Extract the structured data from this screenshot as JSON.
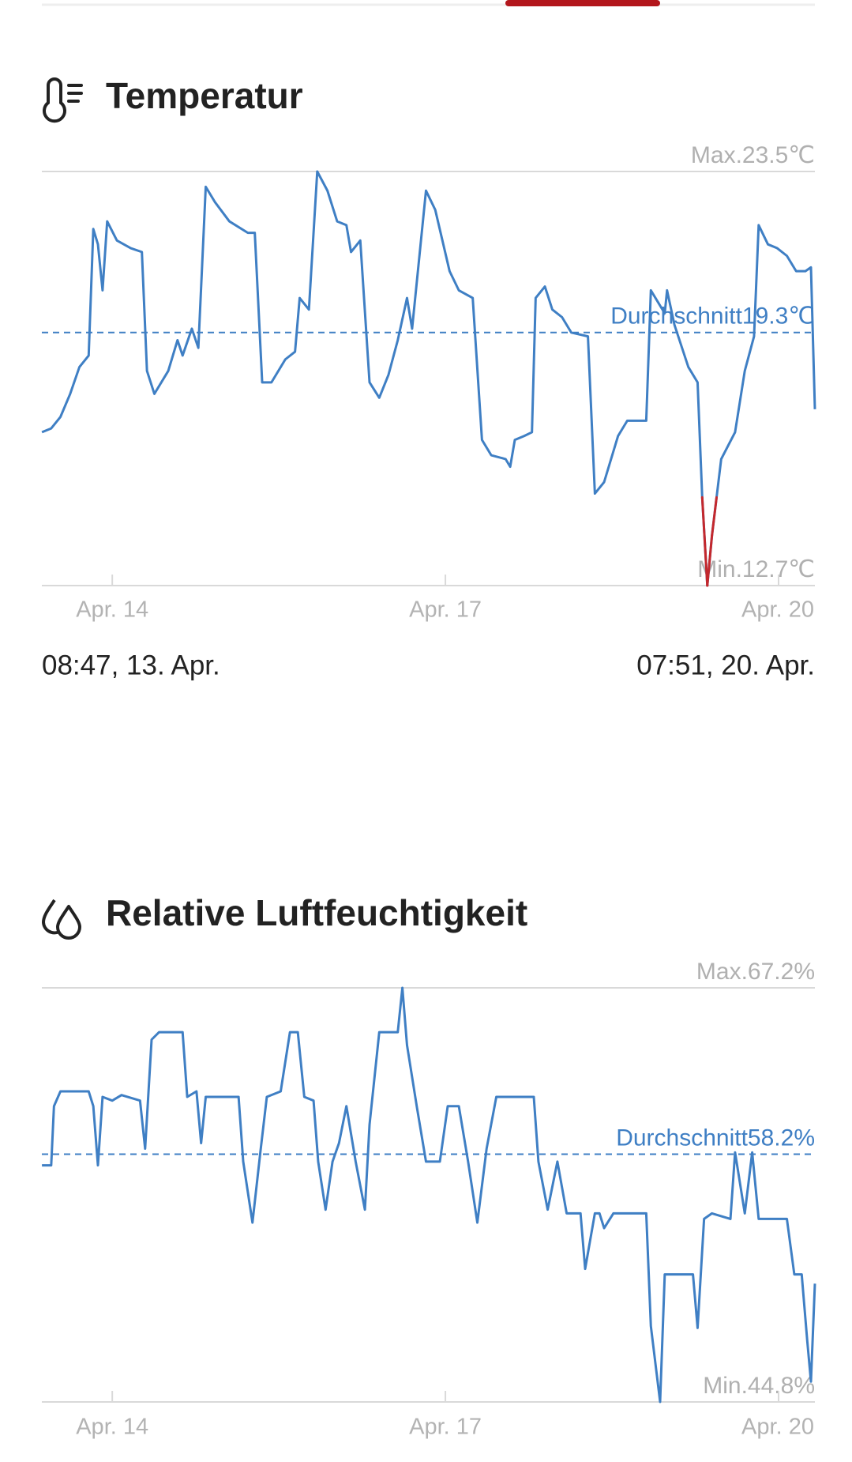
{
  "chart_data": [
    {
      "type": "line",
      "title": "Temperatur",
      "color": "#3f7fc4",
      "highlight_color": "#c4282d",
      "highlight_below": 15.0,
      "xlim": [
        8.78,
        175.85
      ],
      "ylim": [
        12.7,
        23.5
      ],
      "xticks": [
        {
          "value": 24,
          "label": "Apr. 14"
        },
        {
          "value": 96,
          "label": "Apr. 17"
        },
        {
          "value": 168,
          "label": "Apr. 20"
        }
      ],
      "reference_lines": [
        {
          "value": 23.5,
          "label": "Max.23.5℃",
          "style": "solid"
        },
        {
          "value": 19.3,
          "label": "Durchschnitt19.3℃",
          "style": "dashed"
        },
        {
          "value": 12.7,
          "label": "Min.12.7℃",
          "style": "solid"
        }
      ],
      "range_labels": [
        "08:47, 13. Apr.",
        "07:51, 20. Apr."
      ],
      "x": [
        8.8,
        10.8,
        12.8,
        14.9,
        16.9,
        18.9,
        19.9,
        20.9,
        21.9,
        22.9,
        25.0,
        28.0,
        30.4,
        31.5,
        33.1,
        36.1,
        38.1,
        39.2,
        41.2,
        42.6,
        44.2,
        46.2,
        49.3,
        53.3,
        54.8,
        56.4,
        58.4,
        61.4,
        63.5,
        64.5,
        66.5,
        68.3,
        70.5,
        72.6,
        74.6,
        75.6,
        77.6,
        79.6,
        81.7,
        83.7,
        85.7,
        87.7,
        88.8,
        91.8,
        93.8,
        96.9,
        98.9,
        101.9,
        103.9,
        105.9,
        109.0,
        110.0,
        111.0,
        113.0,
        114.7,
        115.5,
        117.5,
        119.1,
        121.2,
        123.2,
        126.8,
        128.3,
        130.3,
        133.3,
        135.3,
        139.4,
        140.4,
        143.4,
        143.9,
        145.5,
        148.5,
        150.5,
        151.5,
        152.6,
        153.6,
        154.6,
        155.6,
        158.6,
        160.7,
        162.7,
        163.7,
        165.7,
        167.7,
        169.8,
        171.8,
        173.8,
        175.0,
        175.85
      ],
      "values": [
        16.7,
        16.8,
        17.1,
        17.7,
        18.4,
        18.7,
        22.0,
        21.6,
        20.4,
        22.2,
        21.7,
        21.5,
        21.4,
        18.3,
        17.7,
        18.3,
        19.1,
        18.7,
        19.4,
        18.9,
        23.1,
        22.7,
        22.2,
        21.9,
        21.9,
        18.0,
        18.0,
        18.6,
        18.8,
        20.2,
        19.9,
        23.5,
        23.0,
        22.2,
        22.1,
        21.4,
        21.7,
        18.0,
        17.6,
        18.2,
        19.1,
        20.2,
        19.4,
        23.0,
        22.5,
        20.9,
        20.4,
        20.2,
        16.5,
        16.1,
        16.0,
        15.8,
        16.5,
        16.6,
        16.7,
        20.2,
        20.5,
        19.9,
        19.7,
        19.3,
        19.2,
        15.1,
        15.4,
        16.6,
        17.0,
        17.0,
        20.4,
        19.8,
        20.4,
        19.5,
        18.4,
        18.0,
        15.0,
        12.7,
        14.0,
        15.0,
        16.0,
        16.7,
        18.3,
        19.2,
        22.1,
        21.6,
        21.5,
        21.3,
        20.9,
        20.9,
        21.0,
        17.3
      ]
    },
    {
      "type": "line",
      "title": "Relative Luftfeuchtigkeit",
      "color": "#3f7fc4",
      "xlim": [
        8.78,
        175.85
      ],
      "ylim": [
        44.8,
        67.2
      ],
      "xticks": [
        {
          "value": 24,
          "label": "Apr. 14"
        },
        {
          "value": 96,
          "label": "Apr. 17"
        },
        {
          "value": 168,
          "label": "Apr. 20"
        }
      ],
      "reference_lines": [
        {
          "value": 67.2,
          "label": "Max.67.2%",
          "style": "solid"
        },
        {
          "value": 58.2,
          "label": "Durchschnitt58.2%",
          "style": "dashed"
        },
        {
          "value": 44.8,
          "label": "Min.44.8%",
          "style": "solid"
        }
      ],
      "x": [
        8.8,
        10.8,
        11.4,
        12.8,
        18.9,
        19.9,
        20.9,
        21.9,
        24.0,
        26.0,
        30.0,
        31.1,
        32.5,
        34.1,
        39.2,
        40.2,
        42.2,
        43.2,
        44.2,
        51.3,
        52.3,
        54.3,
        56.0,
        57.4,
        60.4,
        62.4,
        64.1,
        65.5,
        67.5,
        68.5,
        70.1,
        71.6,
        73.0,
        74.6,
        76.6,
        78.6,
        79.6,
        81.7,
        85.7,
        86.7,
        87.7,
        89.8,
        91.8,
        94.8,
        96.5,
        98.9,
        100.9,
        102.9,
        104.9,
        107.0,
        115.1,
        116.1,
        118.1,
        120.2,
        122.2,
        125.2,
        126.2,
        128.3,
        129.3,
        130.3,
        132.3,
        139.4,
        140.4,
        142.4,
        143.4,
        149.5,
        150.5,
        151.9,
        153.6,
        157.6,
        158.6,
        160.7,
        162.3,
        163.7,
        169.8,
        171.4,
        173.0,
        174.2,
        175.0,
        175.85
      ],
      "values": [
        57.6,
        57.6,
        60.8,
        61.6,
        61.6,
        60.8,
        57.6,
        61.3,
        61.1,
        61.4,
        61.1,
        58.5,
        64.4,
        64.8,
        64.8,
        61.3,
        61.6,
        58.8,
        61.3,
        61.3,
        57.8,
        54.5,
        58.3,
        61.3,
        61.6,
        64.8,
        64.8,
        61.3,
        61.1,
        57.8,
        55.2,
        57.8,
        58.8,
        60.8,
        57.8,
        55.2,
        59.8,
        64.8,
        64.8,
        67.2,
        64.1,
        60.8,
        57.8,
        57.8,
        60.8,
        60.8,
        57.8,
        54.5,
        58.5,
        61.3,
        61.3,
        57.8,
        55.2,
        57.8,
        55.0,
        55.0,
        52.0,
        55.0,
        55.0,
        54.2,
        55.0,
        55.0,
        48.9,
        44.8,
        51.7,
        51.7,
        48.8,
        54.7,
        55.0,
        54.7,
        58.3,
        55.0,
        58.3,
        54.7,
        54.7,
        51.7,
        51.7,
        48.1,
        45.9,
        51.2
      ]
    }
  ]
}
